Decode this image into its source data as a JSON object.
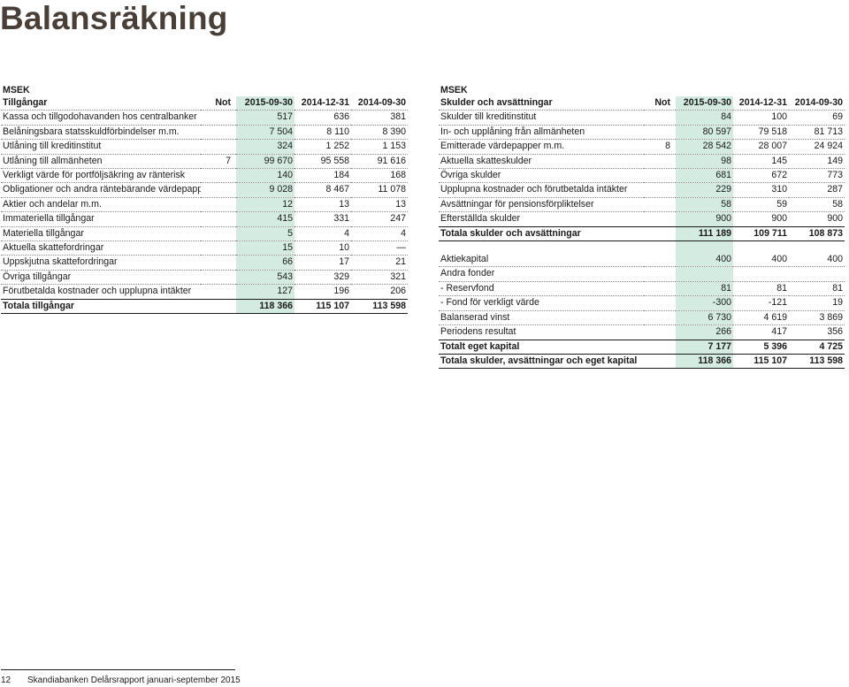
{
  "page": {
    "title": "Balansräkning"
  },
  "assets": {
    "unit": "MSEK",
    "header": {
      "label": "Tillgångar",
      "not": "Not",
      "c1": "2015-09-30",
      "c2": "2014-12-31",
      "c3": "2014-09-30"
    },
    "rows": [
      {
        "label": "Kassa och tillgodohavanden hos centralbanker",
        "not": "",
        "v1": "517",
        "v2": "636",
        "v3": "381"
      },
      {
        "label": "Belåningsbara statsskuldförbindelser m.m.",
        "not": "",
        "v1": "7 504",
        "v2": "8 110",
        "v3": "8 390"
      },
      {
        "label": "Utlåning till kreditinstitut",
        "not": "",
        "v1": "324",
        "v2": "1 252",
        "v3": "1 153"
      },
      {
        "label": "Utlåning till allmänheten",
        "not": "7",
        "v1": "99 670",
        "v2": "95 558",
        "v3": "91 616"
      },
      {
        "label": "Verkligt värde för portföljsäkring av ränterisk",
        "not": "",
        "v1": "140",
        "v2": "184",
        "v3": "168"
      },
      {
        "label": "Obligationer och andra räntebärande värdepapper",
        "not": "",
        "v1": "9 028",
        "v2": "8 467",
        "v3": "11 078"
      },
      {
        "label": "Aktier och andelar m.m.",
        "not": "",
        "v1": "12",
        "v2": "13",
        "v3": "13"
      },
      {
        "label": "Immateriella tillgångar",
        "not": "",
        "v1": "415",
        "v2": "331",
        "v3": "247"
      },
      {
        "label": "Materiella tillgångar",
        "not": "",
        "v1": "5",
        "v2": "4",
        "v3": "4"
      },
      {
        "label": "Aktuella skattefordringar",
        "not": "",
        "v1": "15",
        "v2": "10",
        "v3": "—"
      },
      {
        "label": "Uppskjutna skattefordringar",
        "not": "",
        "v1": "66",
        "v2": "17",
        "v3": "21"
      },
      {
        "label": "Övriga tillgångar",
        "not": "",
        "v1": "543",
        "v2": "329",
        "v3": "321"
      },
      {
        "label": "Förutbetalda kostnader och upplupna intäkter",
        "not": "",
        "v1": "127",
        "v2": "196",
        "v3": "206"
      }
    ],
    "total": {
      "label": "Totala tillgångar",
      "not": "",
      "v1": "118 366",
      "v2": "115 107",
      "v3": "113 598"
    }
  },
  "liabilities": {
    "unit": "MSEK",
    "header": {
      "label": "Skulder och avsättningar",
      "not": "Not",
      "c1": "2015-09-30",
      "c2": "2014-12-31",
      "c3": "2014-09-30"
    },
    "rows": [
      {
        "label": "Skulder till kreditinstitut",
        "not": "",
        "v1": "84",
        "v2": "100",
        "v3": "69"
      },
      {
        "label": "In- och upplåning från allmänheten",
        "not": "",
        "v1": "80 597",
        "v2": "79 518",
        "v3": "81 713"
      },
      {
        "label": "Emitterade värdepapper m.m.",
        "not": "8",
        "v1": "28 542",
        "v2": "28 007",
        "v3": "24 924"
      },
      {
        "label": "Aktuella skatteskulder",
        "not": "",
        "v1": "98",
        "v2": "145",
        "v3": "149"
      },
      {
        "label": "Övriga skulder",
        "not": "",
        "v1": "681",
        "v2": "672",
        "v3": "773"
      },
      {
        "label": "Upplupna kostnader och förutbetalda intäkter",
        "not": "",
        "v1": "229",
        "v2": "310",
        "v3": "287"
      },
      {
        "label": "Avsättningar för pensionsförpliktelser",
        "not": "",
        "v1": "58",
        "v2": "59",
        "v3": "58"
      },
      {
        "label": "Efterställda skulder",
        "not": "",
        "v1": "900",
        "v2": "900",
        "v3": "900"
      }
    ],
    "subtotal": {
      "label": "Totala skulder och avsättningar",
      "not": "",
      "v1": "111 189",
      "v2": "109 711",
      "v3": "108 873"
    },
    "equity_rows": [
      {
        "label": "Aktiekapital",
        "not": "",
        "v1": "400",
        "v2": "400",
        "v3": "400"
      },
      {
        "label": "Andra fonder",
        "not": "",
        "v1": "",
        "v2": "",
        "v3": ""
      },
      {
        "label": "- Reservfond",
        "not": "",
        "v1": "81",
        "v2": "81",
        "v3": "81"
      },
      {
        "label": "- Fond för verkligt värde",
        "not": "",
        "v1": "-300",
        "v2": "-121",
        "v3": "19"
      },
      {
        "label": "Balanserad vinst",
        "not": "",
        "v1": "6 730",
        "v2": "4 619",
        "v3": "3 869"
      },
      {
        "label": "Periodens resultat",
        "not": "",
        "v1": "266",
        "v2": "417",
        "v3": "356"
      }
    ],
    "equity_total": {
      "label": "Totalt eget kapital",
      "not": "",
      "v1": "7 177",
      "v2": "5 396",
      "v3": "4 725"
    },
    "grand_total": {
      "label": "Totala skulder, avsättningar och eget kapital",
      "not": "",
      "v1": "118 366",
      "v2": "115 107",
      "v3": "113 598"
    }
  },
  "footer": {
    "page_number": "12",
    "text": "Skandiabanken Delårsrapport januari-september 2015"
  },
  "colors": {
    "highlight_column": "#d4ebe2",
    "title": "#4a3f37"
  }
}
